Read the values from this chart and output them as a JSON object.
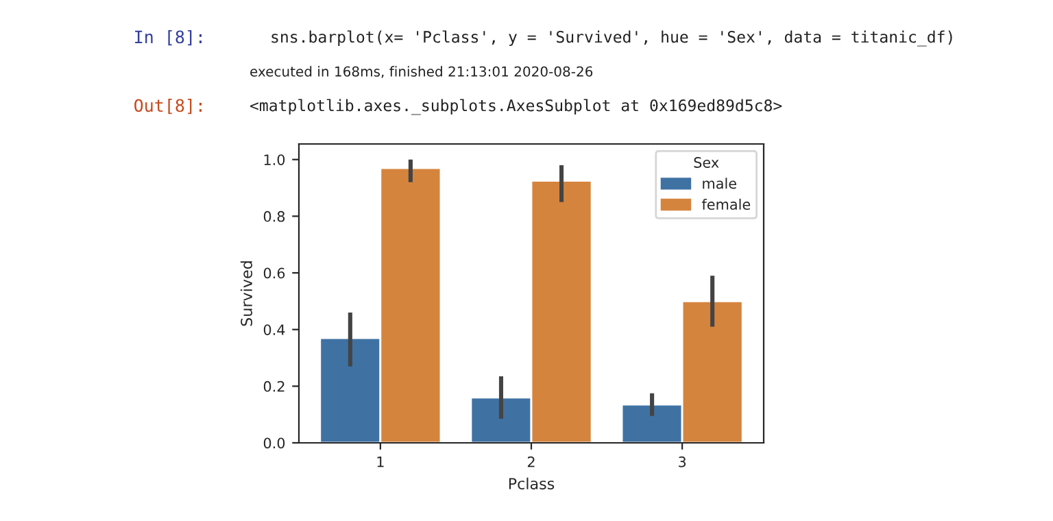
{
  "chart_data": {
    "type": "bar",
    "xlabel": "Pclass",
    "ylabel": "Survived",
    "legend_title": "Sex",
    "legend": "top right",
    "categories": [
      "1",
      "2",
      "3"
    ],
    "series": [
      {
        "name": "male",
        "color": "#3f72a3",
        "values": [
          0.37,
          0.16,
          0.135
        ],
        "errors": [
          [
            0.27,
            0.46
          ],
          [
            0.085,
            0.235
          ],
          [
            0.095,
            0.175
          ]
        ]
      },
      {
        "name": "female",
        "color": "#d5843e",
        "values": [
          0.97,
          0.925,
          0.5
        ],
        "errors": [
          [
            0.92,
            1.0
          ],
          [
            0.85,
            0.98
          ],
          [
            0.41,
            0.59
          ]
        ]
      }
    ],
    "ylim": [
      0,
      1.055
    ],
    "yticks": [
      {
        "value": 0,
        "label": "0.0"
      },
      {
        "value": 0.2,
        "label": "0.2"
      },
      {
        "value": 0.4,
        "label": "0.4"
      },
      {
        "value": 0.6,
        "label": "0.6"
      },
      {
        "value": 0.8,
        "label": "0.8"
      },
      {
        "value": 1.0,
        "label": "1.0"
      }
    ],
    "grid": false,
    "annotations": [
      "In [8]:",
      "sns.barplot(x= 'Pclass', y = 'Survived', hue = 'Sex', data = titanic_df)",
      "executed in 168ms, finished 21:13:01 2020-08-26",
      "Out[8]:",
      "<matplotlib.axes._subplots.AxesSubplot at 0x169ed89d5c8>"
    ]
  }
}
